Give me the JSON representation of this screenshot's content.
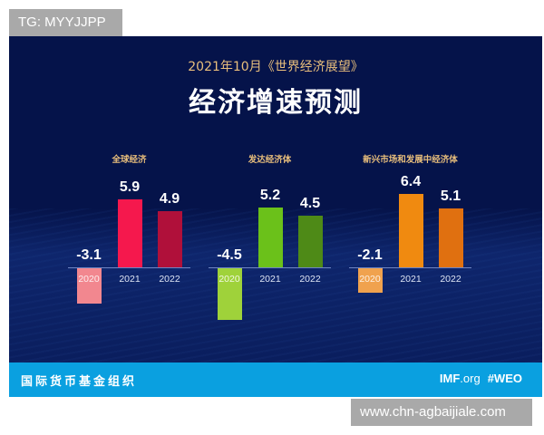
{
  "watermarks": {
    "top": "TG: MYYJJPP",
    "bottom": "www.chn-agbaijiale.com"
  },
  "header": {
    "subtitle": "2021年10月《世界经济展望》",
    "title": "经济增速预测"
  },
  "footer": {
    "org_name": "国际货币基金组织",
    "imf": "IMF",
    "org_domain": ".org",
    "hashtag": "#WEO"
  },
  "colors": {
    "background": "#05134a",
    "footer": "#0aa0e0",
    "label_gold": "#e9bf7c",
    "global": [
      "#f2878f",
      "#f5184d",
      "#b0103a"
    ],
    "advanced": [
      "#9fd23a",
      "#6bc11a",
      "#4e8a17"
    ],
    "emerging": [
      "#f0a24e",
      "#f08a10",
      "#e07010"
    ]
  },
  "chart_data": {
    "type": "bar",
    "title": "经济增速预测",
    "subtitle": "2021年10月《世界经济展望》",
    "categories": [
      "2020",
      "2021",
      "2022"
    ],
    "xlabel": "",
    "ylabel": "",
    "grid": false,
    "legend": "none",
    "groups": [
      {
        "name": "全球经济",
        "categories": [
          "2020",
          "2021",
          "2022"
        ],
        "values": [
          -3.1,
          5.9,
          4.9
        ],
        "labels": [
          "-3.1",
          "5.9",
          "4.9"
        ]
      },
      {
        "name": "发达经济体",
        "categories": [
          "2020",
          "2021",
          "2022"
        ],
        "values": [
          -4.5,
          5.2,
          4.5
        ],
        "labels": [
          "-4.5",
          "5.2",
          "4.5"
        ]
      },
      {
        "name": "新兴市场和发展中经济体",
        "categories": [
          "2020",
          "2021",
          "2022"
        ],
        "values": [
          -2.1,
          6.4,
          5.1
        ],
        "labels": [
          "-2.1",
          "6.4",
          "5.1"
        ]
      }
    ],
    "series": [
      {
        "name": "全球经济",
        "values": [
          -3.1,
          5.9,
          4.9
        ]
      },
      {
        "name": "发达经济体",
        "values": [
          -4.5,
          5.2,
          4.5
        ]
      },
      {
        "name": "新兴市场和发展中经济体",
        "values": [
          -2.1,
          6.4,
          5.1
        ]
      }
    ]
  }
}
